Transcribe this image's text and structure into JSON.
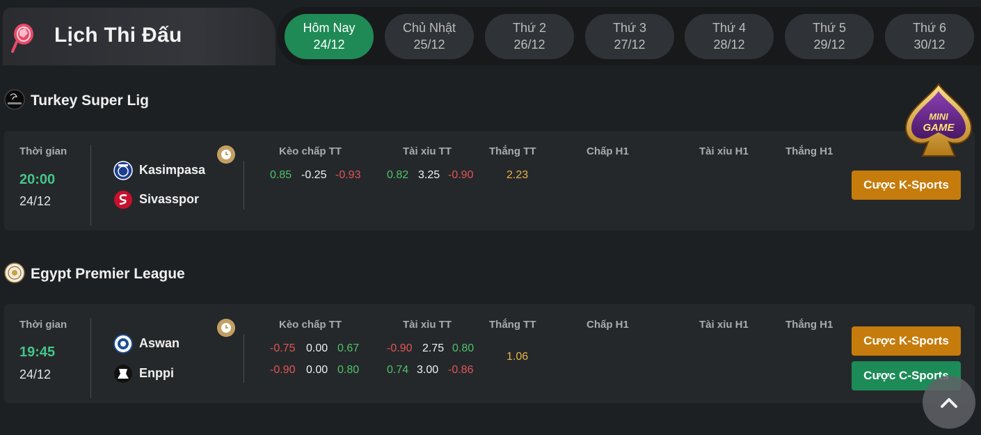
{
  "header": {
    "title": "Lịch Thi Đấu",
    "tabs": [
      {
        "day": "Hôm Nay",
        "date": "24/12",
        "active": true
      },
      {
        "day": "Chủ Nhật",
        "date": "25/12",
        "active": false
      },
      {
        "day": "Thứ 2",
        "date": "26/12",
        "active": false
      },
      {
        "day": "Thứ 3",
        "date": "27/12",
        "active": false
      },
      {
        "day": "Thứ 4",
        "date": "28/12",
        "active": false
      },
      {
        "day": "Thứ 5",
        "date": "29/12",
        "active": false
      },
      {
        "day": "Thứ 6",
        "date": "30/12",
        "active": false
      }
    ]
  },
  "columns": {
    "time": "Thời gian",
    "handicap": "Kèo chấp TT",
    "overunder": "Tài xỉu TT",
    "win": "Thắng TT",
    "handicap_h1": "Chấp H1",
    "overunder_h1": "Tài xỉu H1",
    "win_h1": "Thắng H1"
  },
  "leagues": [
    {
      "name": "Turkey Super Lig",
      "match": {
        "time": "20:00",
        "date": "24/12",
        "home": "Kasimpasa",
        "away": "Sivasspor",
        "handicap": [
          [
            "0.85",
            "-0.25",
            "-0.93"
          ]
        ],
        "overunder": [
          [
            "0.82",
            "3.25",
            "-0.90"
          ]
        ],
        "win": "2.23",
        "buttons": [
          "Cược K-Sports"
        ]
      }
    },
    {
      "name": "Egypt Premier League",
      "match": {
        "time": "19:45",
        "date": "24/12",
        "home": "Aswan",
        "away": "Enppi",
        "handicap": [
          [
            "-0.75",
            "0.00",
            "0.67"
          ],
          [
            "-0.90",
            "0.00",
            "0.80"
          ]
        ],
        "overunder": [
          [
            "-0.90",
            "2.75",
            "0.80"
          ],
          [
            "0.74",
            "3.00",
            "-0.86"
          ]
        ],
        "win": "1.06",
        "buttons": [
          "Cược K-Sports",
          "Cược C-Sports"
        ]
      }
    }
  ],
  "floating": {
    "minigame_line1": "MINI",
    "minigame_line2": "GAME"
  },
  "colors": {
    "accent_green": "#1f8a56",
    "odds_positive": "#4cc36a",
    "odds_negative": "#e25555",
    "odds_win": "#e8b348",
    "button_k": "#c57c0c",
    "button_c": "#1c8b58"
  }
}
